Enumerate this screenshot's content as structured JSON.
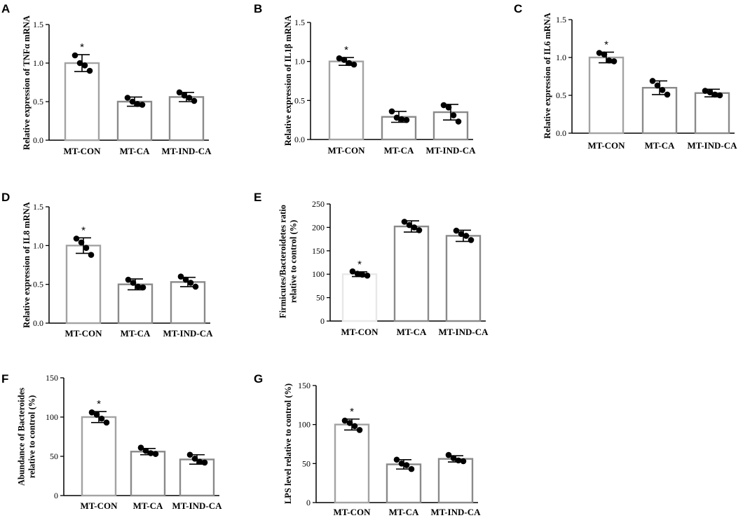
{
  "figure": {
    "panel_count": 7
  },
  "chart_data": [
    {
      "panel": "A",
      "type": "bar",
      "title": "",
      "ylabel": [
        "Relative expression of TNFα mRNA"
      ],
      "xlabel": "",
      "categories": [
        "MT-CON",
        "MT-CA",
        "MT-IND-CA"
      ],
      "values": [
        1.0,
        0.5,
        0.56
      ],
      "error": [
        0.11,
        0.06,
        0.06
      ],
      "points": [
        [
          1.1,
          1.0,
          0.97,
          0.9
        ],
        [
          0.55,
          0.5,
          0.47,
          0.46
        ],
        [
          0.62,
          0.58,
          0.55,
          0.51
        ]
      ],
      "ylim": [
        0,
        1.5
      ],
      "yticks": [
        0.0,
        0.5,
        1.0,
        1.5
      ],
      "yticklabels": [
        "0.0",
        "0.5",
        "1.0",
        "1.5"
      ],
      "significance": [
        "*",
        "",
        ""
      ],
      "bar_colors": [
        "#a3a3a3",
        "#8a8a8a",
        "#8a8a8a"
      ]
    },
    {
      "panel": "B",
      "type": "bar",
      "title": "",
      "ylabel": [
        "Relative expression of IL1β mRNA"
      ],
      "xlabel": "",
      "categories": [
        "MT-CON",
        "MT-CA",
        "MT-IND-CA"
      ],
      "values": [
        1.0,
        0.29,
        0.35
      ],
      "error": [
        0.05,
        0.07,
        0.1
      ],
      "points": [
        [
          1.04,
          1.02,
          0.98,
          0.96
        ],
        [
          0.36,
          0.28,
          0.26,
          0.25
        ],
        [
          0.44,
          0.41,
          0.31,
          0.23
        ]
      ],
      "ylim": [
        0,
        1.5
      ],
      "yticks": [
        0.0,
        0.5,
        1.0,
        1.5
      ],
      "yticklabels": [
        "0.0",
        "0.5",
        "1.0",
        "1.5"
      ],
      "significance": [
        "*",
        "",
        ""
      ],
      "bar_colors": [
        "#a3a3a3",
        "#8a8a8a",
        "#8a8a8a"
      ]
    },
    {
      "panel": "C",
      "type": "bar",
      "title": "",
      "ylabel": [
        "Relative expression of IL6 mRNA"
      ],
      "xlabel": "",
      "categories": [
        "MT-CON",
        "MT-CA",
        "MT-IND-CA"
      ],
      "values": [
        1.0,
        0.6,
        0.53
      ],
      "error": [
        0.07,
        0.09,
        0.05
      ],
      "points": [
        [
          1.06,
          1.04,
          0.96,
          0.95
        ],
        [
          0.69,
          0.63,
          0.57,
          0.51
        ],
        [
          0.56,
          0.54,
          0.51,
          0.5
        ]
      ],
      "ylim": [
        0,
        1.5
      ],
      "yticks": [
        0.0,
        0.5,
        1.0,
        1.5
      ],
      "yticklabels": [
        "0.0",
        "0.5",
        "1.0",
        "1.5"
      ],
      "significance": [
        "*",
        "",
        ""
      ],
      "bar_colors": [
        "#a3a3a3",
        "#8a8a8a",
        "#8a8a8a"
      ]
    },
    {
      "panel": "D",
      "type": "bar",
      "title": "",
      "ylabel": [
        "Relative expression of IL8 mRNA"
      ],
      "xlabel": "",
      "categories": [
        "MT-CON",
        "MT-CA",
        "MT-IND-CA"
      ],
      "values": [
        1.0,
        0.5,
        0.53
      ],
      "error": [
        0.1,
        0.07,
        0.06
      ],
      "points": [
        [
          1.09,
          1.04,
          0.97,
          0.88
        ],
        [
          0.56,
          0.52,
          0.47,
          0.46
        ],
        [
          0.6,
          0.56,
          0.52,
          0.47
        ]
      ],
      "ylim": [
        0,
        1.5
      ],
      "yticks": [
        0.0,
        0.5,
        1.0,
        1.5
      ],
      "yticklabels": [
        "0.0",
        "0.5",
        "1.0",
        "1.5"
      ],
      "significance": [
        "*",
        "",
        ""
      ],
      "bar_colors": [
        "#a3a3a3",
        "#8a8a8a",
        "#8a8a8a"
      ]
    },
    {
      "panel": "E",
      "type": "bar",
      "title": "",
      "ylabel": [
        "Firmicutes/Bacteroidetes ratio",
        "relative to control (%)"
      ],
      "xlabel": "",
      "categories": [
        "MT-CON",
        "MT-CA",
        "MT-IND-CA"
      ],
      "values": [
        100,
        202,
        182
      ],
      "error": [
        5,
        12,
        12
      ],
      "points": [
        [
          106,
          101,
          99,
          97
        ],
        [
          212,
          205,
          200,
          194
        ],
        [
          193,
          186,
          182,
          173
        ]
      ],
      "ylim": [
        0,
        250
      ],
      "yticks": [
        0,
        50,
        100,
        150,
        200,
        250
      ],
      "yticklabels": [
        "0",
        "50",
        "100",
        "150",
        "200",
        "250"
      ],
      "significance": [
        "*",
        "",
        ""
      ],
      "bar_colors": [
        "#e8e8e8",
        "#8a8a8a",
        "#8a8a8a"
      ]
    },
    {
      "panel": "F",
      "type": "bar",
      "title": "",
      "ylabel": [
        "Abundance of Bacteroides",
        "relative to control (%)"
      ],
      "xlabel": "",
      "categories": [
        "MT-CON",
        "MT-CA",
        "MT-IND-CA"
      ],
      "values": [
        100,
        56,
        46
      ],
      "error": [
        7,
        4,
        6
      ],
      "points": [
        [
          106,
          103,
          98,
          93
        ],
        [
          61,
          57,
          54,
          53
        ],
        [
          52,
          47,
          43,
          42
        ]
      ],
      "ylim": [
        0,
        150
      ],
      "yticks": [
        0,
        50,
        100,
        150
      ],
      "yticklabels": [
        "0",
        "50",
        "100",
        "150"
      ],
      "significance": [
        "*",
        "",
        ""
      ],
      "bar_colors": [
        "#a3a3a3",
        "#8a8a8a",
        "#8a8a8a"
      ]
    },
    {
      "panel": "G",
      "type": "bar",
      "title": "",
      "ylabel": [
        "LPS level relative to control (%)"
      ],
      "xlabel": "",
      "categories": [
        "MT-CON",
        "MT-CA",
        "MT-IND-CA"
      ],
      "values": [
        100,
        49,
        56
      ],
      "error": [
        7,
        6,
        4
      ],
      "points": [
        [
          105,
          102,
          98,
          93
        ],
        [
          55,
          50,
          48,
          43
        ],
        [
          61,
          57,
          54,
          53
        ]
      ],
      "ylim": [
        0,
        150
      ],
      "yticks": [
        0,
        50,
        100,
        150
      ],
      "yticklabels": [
        "0",
        "50",
        "100",
        "150"
      ],
      "significance": [
        "*",
        "",
        ""
      ],
      "bar_colors": [
        "#a3a3a3",
        "#8a8a8a",
        "#8a8a8a"
      ]
    }
  ]
}
